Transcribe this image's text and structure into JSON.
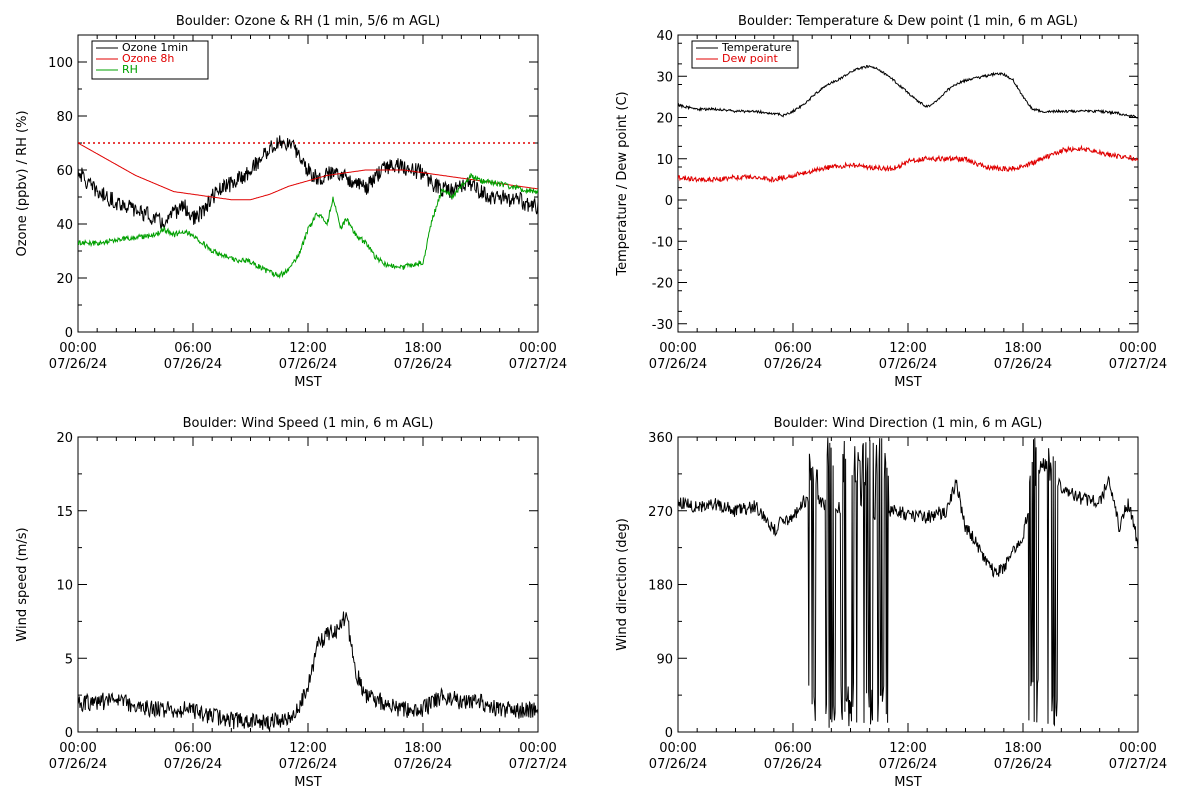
{
  "colors": {
    "ozone_1min": "#000000",
    "ozone_8h": "#e00000",
    "rh": "#00a000",
    "temperature": "#000000",
    "dew_point": "#e00000",
    "threshold": "#e00000",
    "wind_speed": "#000000",
    "wind_direction": "#000000"
  },
  "chart_data": [
    {
      "id": "ozone-rh",
      "type": "line",
      "title": "Boulder: Ozone & RH (1 min, 5/6 m AGL)",
      "xlabel": "MST",
      "ylabel": "Ozone (ppbv) / RH (%)",
      "x_ticks": [
        {
          "time": "00:00",
          "date": "07/26/24"
        },
        {
          "time": "06:00",
          "date": "07/26/24"
        },
        {
          "time": "12:00",
          "date": "07/26/24"
        },
        {
          "time": "18:00",
          "date": "07/26/24"
        },
        {
          "time": "00:00",
          "date": "07/27/24"
        }
      ],
      "xlim": [
        0,
        24
      ],
      "ylim": [
        0,
        110
      ],
      "y_ticks": [
        "0",
        "20",
        "40",
        "60",
        "80",
        "100"
      ],
      "threshold": 70,
      "legend_position": "top-left",
      "series": [
        {
          "name": "Ozone 1min",
          "color_key": "ozone_1min",
          "noise": 3,
          "x": [
            0,
            0.5,
            1,
            1.5,
            2,
            2.5,
            3,
            3.5,
            4,
            4.5,
            5,
            5.5,
            6,
            6.5,
            7,
            7.5,
            8,
            8.5,
            9,
            9.5,
            10,
            10.5,
            11,
            11.5,
            12,
            12.5,
            13,
            13.5,
            14,
            14.5,
            15,
            15.5,
            16,
            16.5,
            17,
            17.5,
            18,
            18.5,
            19,
            19.5,
            20,
            20.5,
            21,
            21.5,
            22,
            22.5,
            23,
            23.5,
            24
          ],
          "values": [
            60,
            55,
            52,
            50,
            48,
            47,
            45,
            44,
            42,
            40,
            44,
            47,
            42,
            44,
            50,
            53,
            55,
            57,
            60,
            64,
            68,
            70,
            70,
            66,
            60,
            57,
            58,
            60,
            57,
            56,
            53,
            57,
            61,
            62,
            61,
            60,
            59,
            55,
            53,
            52,
            54,
            55,
            52,
            50,
            50,
            49,
            49,
            47,
            46
          ]
        },
        {
          "name": "Ozone 8h",
          "color_key": "ozone_8h",
          "noise": 0,
          "x": [
            0,
            1,
            2,
            3,
            4,
            5,
            6,
            7,
            8,
            9,
            10,
            11,
            12,
            13,
            14,
            15,
            16,
            17,
            18,
            19,
            20,
            21,
            22,
            23,
            24
          ],
          "values": [
            70,
            66,
            62,
            58,
            55,
            52,
            51,
            50,
            49,
            49,
            51,
            54,
            56,
            58,
            59,
            60,
            60,
            60,
            59,
            58,
            57,
            56,
            55,
            54,
            53
          ]
        },
        {
          "name": "RH",
          "color_key": "rh",
          "noise": 1,
          "x": [
            0,
            1,
            2,
            3,
            4,
            4.5,
            5,
            5.5,
            6,
            6.5,
            7,
            8,
            9,
            10,
            10.5,
            11,
            11.5,
            12,
            12.5,
            13,
            13.3,
            13.7,
            14,
            14.5,
            15,
            15.5,
            16,
            17,
            18,
            18.5,
            19,
            19.5,
            20,
            20.5,
            21,
            22,
            23,
            24
          ],
          "values": [
            33,
            33,
            34,
            35,
            36,
            38,
            36,
            37,
            36,
            33,
            30,
            27,
            26,
            22,
            21,
            23,
            28,
            38,
            44,
            40,
            50,
            38,
            42,
            36,
            33,
            28,
            25,
            24,
            26,
            42,
            53,
            50,
            54,
            58,
            56,
            55,
            53,
            52
          ]
        }
      ]
    },
    {
      "id": "temp-dew",
      "type": "line",
      "title": "Boulder: Temperature & Dew point (1 min, 6 m AGL)",
      "xlabel": "MST",
      "ylabel": "Temperature / Dew point (C)",
      "x_ticks": [
        {
          "time": "00:00",
          "date": "07/26/24"
        },
        {
          "time": "06:00",
          "date": "07/26/24"
        },
        {
          "time": "12:00",
          "date": "07/26/24"
        },
        {
          "time": "18:00",
          "date": "07/26/24"
        },
        {
          "time": "00:00",
          "date": "07/27/24"
        }
      ],
      "xlim": [
        0,
        24
      ],
      "ylim": [
        -32,
        40
      ],
      "y_ticks": [
        "-30",
        "-20",
        "-10",
        "0",
        "10",
        "20",
        "30",
        "40"
      ],
      "legend_position": "top-left",
      "series": [
        {
          "name": "Temperature",
          "color_key": "temperature",
          "noise": 0.3,
          "x": [
            0,
            1,
            2,
            3,
            4,
            5,
            5.5,
            6,
            6.5,
            7,
            7.5,
            8,
            8.5,
            9,
            9.5,
            10,
            10.5,
            11,
            11.5,
            12,
            12.5,
            13,
            13.5,
            14,
            14.5,
            15,
            15.5,
            16,
            16.5,
            17,
            17.5,
            18,
            18.5,
            19,
            20,
            21,
            22,
            23,
            24
          ],
          "values": [
            23,
            22,
            22,
            21.5,
            21.5,
            21,
            20.5,
            21.5,
            23,
            25,
            27,
            28.5,
            29.5,
            31,
            32,
            32.5,
            31.5,
            30,
            28,
            26,
            24,
            22.5,
            24,
            26.5,
            28,
            29,
            29.5,
            30,
            30.5,
            30.5,
            29,
            25,
            22,
            21.5,
            21.5,
            21.5,
            21.5,
            21,
            20
          ]
        },
        {
          "name": "Dew point",
          "color_key": "dew_point",
          "noise": 0.6,
          "x": [
            0,
            1,
            2,
            3,
            4,
            5,
            6,
            7,
            8,
            9,
            10,
            11,
            11.5,
            12,
            13,
            14,
            15,
            16,
            17,
            18,
            19,
            20,
            21,
            22,
            23,
            24
          ],
          "values": [
            5.5,
            5,
            5,
            5.5,
            5.5,
            5,
            6,
            7,
            8,
            8.5,
            8,
            7.5,
            8,
            9.5,
            10,
            10,
            10,
            8,
            7.5,
            8,
            10,
            12,
            12.5,
            11.5,
            10.5,
            10
          ]
        }
      ]
    },
    {
      "id": "wind-speed",
      "type": "line",
      "title": "Boulder: Wind Speed (1 min, 6 m AGL)",
      "xlabel": "MST",
      "ylabel": "Wind speed (m/s)",
      "x_ticks": [
        {
          "time": "00:00",
          "date": "07/26/24"
        },
        {
          "time": "06:00",
          "date": "07/26/24"
        },
        {
          "time": "12:00",
          "date": "07/26/24"
        },
        {
          "time": "18:00",
          "date": "07/26/24"
        },
        {
          "time": "00:00",
          "date": "07/27/24"
        }
      ],
      "xlim": [
        0,
        24
      ],
      "ylim": [
        0,
        20
      ],
      "y_ticks": [
        "0",
        "5",
        "10",
        "15",
        "20"
      ],
      "series": [
        {
          "name": "",
          "color_key": "wind_speed",
          "noise": 0.6,
          "x": [
            0,
            1,
            2,
            3,
            4,
            5,
            6,
            7,
            8,
            9,
            10,
            11,
            11.5,
            12,
            12.5,
            13,
            13.5,
            14,
            14.5,
            15,
            16,
            17,
            18,
            19,
            20,
            21,
            22,
            23,
            24
          ],
          "values": [
            2,
            2,
            2.2,
            1.8,
            1.5,
            1.5,
            1.5,
            1,
            0.8,
            0.7,
            0.7,
            1,
            1.5,
            3,
            6,
            6.5,
            7,
            8,
            4,
            2.5,
            2,
            1.5,
            1.5,
            2.5,
            2,
            2,
            1.5,
            1.5,
            1.5
          ]
        }
      ]
    },
    {
      "id": "wind-direction",
      "type": "line",
      "title": "Boulder: Wind Direction (1 min, 6 m AGL)",
      "xlabel": "MST",
      "ylabel": "Wind direction (deg)",
      "x_ticks": [
        {
          "time": "00:00",
          "date": "07/26/24"
        },
        {
          "time": "06:00",
          "date": "07/26/24"
        },
        {
          "time": "12:00",
          "date": "07/26/24"
        },
        {
          "time": "18:00",
          "date": "07/26/24"
        },
        {
          "time": "00:00",
          "date": "07/27/24"
        }
      ],
      "xlim": [
        0,
        24
      ],
      "ylim": [
        0,
        360
      ],
      "y_ticks": [
        "0",
        "90",
        "180",
        "270",
        "360"
      ],
      "series": [
        {
          "name": "",
          "color_key": "wind_direction",
          "noise": 8,
          "wrap_segments": [
            [
              6.8,
              7.3
            ],
            [
              7.7,
              8.2
            ],
            [
              8.5,
              9.5
            ],
            [
              9.6,
              10.2
            ],
            [
              10.3,
              11.0
            ],
            [
              18.3,
              18.8
            ],
            [
              19.3,
              19.8
            ]
          ],
          "x": [
            0,
            1,
            2,
            3,
            4,
            4.5,
            5,
            5.5,
            6,
            6.5,
            7,
            8,
            9,
            10,
            11,
            11.5,
            12,
            13,
            14,
            14.5,
            15,
            15.5,
            16,
            16.5,
            17,
            17.5,
            18,
            18.5,
            19,
            20,
            21,
            22,
            22.5,
            23,
            23.5,
            24
          ],
          "values": [
            280,
            275,
            278,
            270,
            275,
            265,
            245,
            260,
            260,
            280,
            290,
            270,
            280,
            260,
            270,
            270,
            265,
            262,
            270,
            305,
            250,
            235,
            210,
            195,
            200,
            220,
            240,
            300,
            330,
            300,
            285,
            280,
            310,
            250,
            280,
            230
          ]
        }
      ]
    }
  ]
}
